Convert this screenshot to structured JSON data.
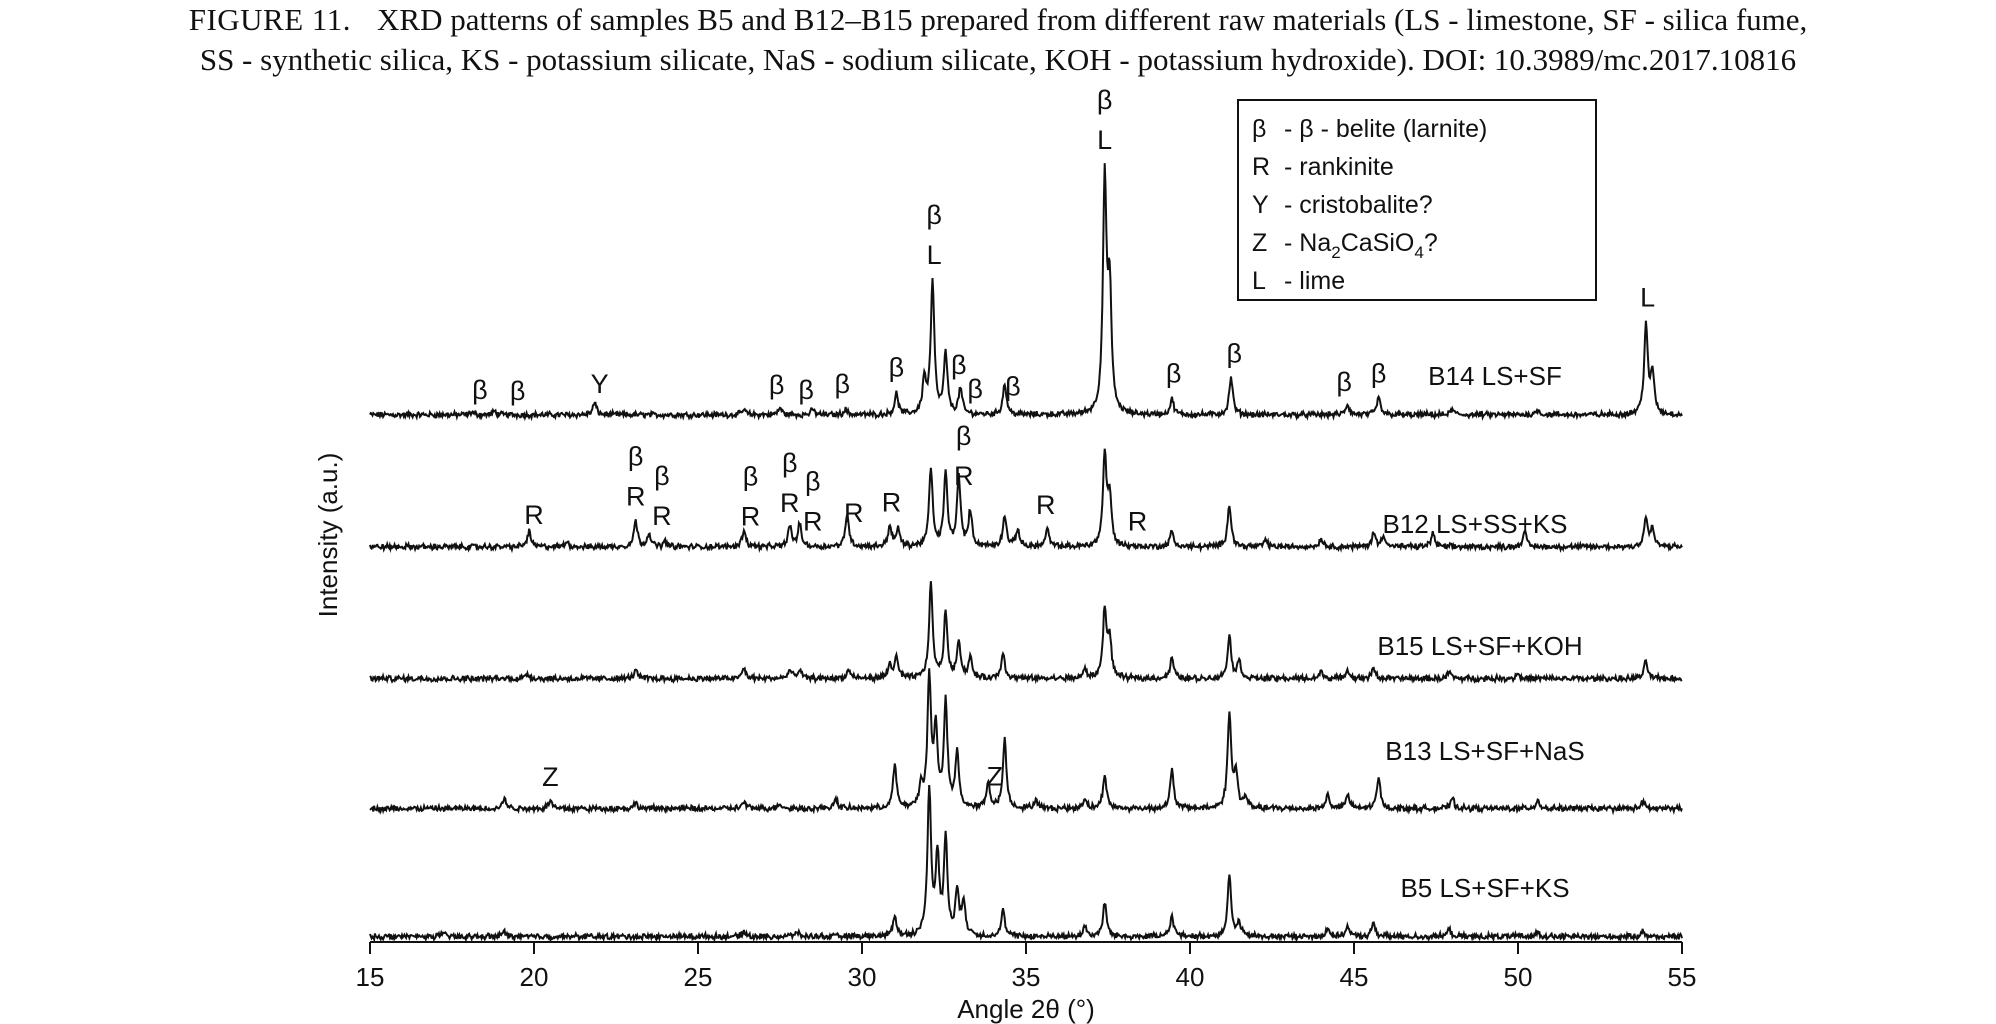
{
  "caption": {
    "figure_label": "FIGURE 11.",
    "line1": "XRD patterns of samples B5 and B12–B15 prepared from different raw materials (LS - limestone, SF - silica fume,",
    "line2": "SS - synthetic silica, KS - potassium silicate, NaS - sodium silicate, KOH - potassium hydroxide). DOI: 10.3989/mc.2017.10816"
  },
  "legend": {
    "entries": [
      {
        "symbol": "β",
        "text": "- β - belite (larnite)"
      },
      {
        "symbol": "R",
        "text": "- rankinite"
      },
      {
        "symbol": "Y",
        "text": "- cristobalite?"
      },
      {
        "symbol": "Z",
        "text": "- Na",
        "sub1": "2",
        "text2": "CaSiO",
        "sub2": "4",
        "text3": "?"
      },
      {
        "symbol": "L",
        "text": "- lime"
      }
    ]
  },
  "chart_data": {
    "type": "line",
    "xlabel": "Angle 2θ (°)",
    "ylabel": "Intensity (a.u.)",
    "xlim": [
      15,
      55
    ],
    "x_ticks": [
      15,
      20,
      25,
      30,
      35,
      40,
      45,
      50,
      55
    ],
    "y_ticks": "none",
    "grid": false,
    "noise": 0.013,
    "series": [
      {
        "name": "B14 LS+SF",
        "offset": 4,
        "baseline": 0.03,
        "peaks": [
          [
            18.1,
            0.015
          ],
          [
            18.8,
            0.02
          ],
          [
            21.85,
            0.07
          ],
          [
            26.4,
            0.03
          ],
          [
            27.5,
            0.04
          ],
          [
            28.5,
            0.03
          ],
          [
            29.5,
            0.03
          ],
          [
            31.05,
            0.12
          ],
          [
            31.9,
            0.2
          ],
          [
            32.15,
            0.77
          ],
          [
            32.55,
            0.35
          ],
          [
            33.0,
            0.15
          ],
          [
            34.35,
            0.18
          ],
          [
            37.4,
            1.35
          ],
          [
            37.55,
            0.7
          ],
          [
            39.45,
            0.09
          ],
          [
            41.25,
            0.22
          ],
          [
            44.8,
            0.06
          ],
          [
            45.75,
            0.1
          ],
          [
            48.0,
            0.03
          ],
          [
            50.6,
            0.03
          ],
          [
            53.9,
            0.52
          ],
          [
            54.1,
            0.24
          ]
        ]
      },
      {
        "name": "B12 LS+SS+KS",
        "offset": 3,
        "baseline": 0.03,
        "peaks": [
          [
            19.85,
            0.09
          ],
          [
            21.0,
            0.03
          ],
          [
            23.1,
            0.15
          ],
          [
            23.5,
            0.08
          ],
          [
            24.0,
            0.03
          ],
          [
            26.4,
            0.1
          ],
          [
            27.8,
            0.12
          ],
          [
            28.1,
            0.13
          ],
          [
            29.55,
            0.19
          ],
          [
            30.85,
            0.12
          ],
          [
            31.1,
            0.1
          ],
          [
            32.1,
            0.45
          ],
          [
            32.55,
            0.42
          ],
          [
            32.95,
            0.4
          ],
          [
            33.3,
            0.2
          ],
          [
            34.35,
            0.18
          ],
          [
            34.75,
            0.1
          ],
          [
            35.65,
            0.1
          ],
          [
            37.4,
            0.53
          ],
          [
            37.55,
            0.28
          ],
          [
            39.45,
            0.09
          ],
          [
            41.2,
            0.25
          ],
          [
            42.3,
            0.04
          ],
          [
            44.0,
            0.05
          ],
          [
            45.6,
            0.08
          ],
          [
            45.9,
            0.07
          ],
          [
            47.4,
            0.08
          ],
          [
            50.2,
            0.09
          ],
          [
            53.9,
            0.17
          ],
          [
            54.1,
            0.1
          ]
        ]
      },
      {
        "name": "B15 LS+SF+KOH",
        "offset": 2,
        "baseline": 0.02,
        "peaks": [
          [
            19.8,
            0.03
          ],
          [
            23.1,
            0.05
          ],
          [
            26.4,
            0.06
          ],
          [
            27.8,
            0.05
          ],
          [
            28.1,
            0.05
          ],
          [
            29.6,
            0.05
          ],
          [
            30.85,
            0.08
          ],
          [
            31.05,
            0.12
          ],
          [
            32.1,
            0.55
          ],
          [
            32.55,
            0.38
          ],
          [
            32.95,
            0.22
          ],
          [
            33.3,
            0.12
          ],
          [
            34.3,
            0.15
          ],
          [
            36.8,
            0.05
          ],
          [
            37.4,
            0.4
          ],
          [
            37.55,
            0.22
          ],
          [
            39.45,
            0.12
          ],
          [
            41.2,
            0.25
          ],
          [
            41.5,
            0.1
          ],
          [
            44.0,
            0.04
          ],
          [
            44.8,
            0.05
          ],
          [
            45.6,
            0.06
          ],
          [
            47.9,
            0.04
          ],
          [
            50.0,
            0.03
          ],
          [
            53.9,
            0.1
          ]
        ]
      },
      {
        "name": "B13 LS+SF+NaS",
        "offset": 1,
        "baseline": 0.02,
        "peaks": [
          [
            19.1,
            0.06
          ],
          [
            20.5,
            0.05
          ],
          [
            23.1,
            0.03
          ],
          [
            26.4,
            0.04
          ],
          [
            27.5,
            0.03
          ],
          [
            29.2,
            0.06
          ],
          [
            31.0,
            0.25
          ],
          [
            31.8,
            0.12
          ],
          [
            32.05,
            0.75
          ],
          [
            32.25,
            0.45
          ],
          [
            32.55,
            0.6
          ],
          [
            32.9,
            0.32
          ],
          [
            33.85,
            0.15
          ],
          [
            34.35,
            0.4
          ],
          [
            35.3,
            0.05
          ],
          [
            36.8,
            0.06
          ],
          [
            37.4,
            0.2
          ],
          [
            39.45,
            0.22
          ],
          [
            41.2,
            0.55
          ],
          [
            41.4,
            0.2
          ],
          [
            41.7,
            0.06
          ],
          [
            44.2,
            0.08
          ],
          [
            44.8,
            0.08
          ],
          [
            45.75,
            0.18
          ],
          [
            48.0,
            0.06
          ],
          [
            50.6,
            0.05
          ],
          [
            53.8,
            0.04
          ]
        ]
      },
      {
        "name": "B5 LS+SF+KS",
        "offset": 0,
        "baseline": 0.02,
        "peaks": [
          [
            17.2,
            0.02
          ],
          [
            19.1,
            0.03
          ],
          [
            26.4,
            0.03
          ],
          [
            28.0,
            0.03
          ],
          [
            31.0,
            0.12
          ],
          [
            32.05,
            0.85
          ],
          [
            32.3,
            0.45
          ],
          [
            32.55,
            0.55
          ],
          [
            32.9,
            0.25
          ],
          [
            33.1,
            0.2
          ],
          [
            34.3,
            0.15
          ],
          [
            36.8,
            0.06
          ],
          [
            37.4,
            0.2
          ],
          [
            39.45,
            0.12
          ],
          [
            41.2,
            0.35
          ],
          [
            41.5,
            0.08
          ],
          [
            44.2,
            0.05
          ],
          [
            44.8,
            0.06
          ],
          [
            45.6,
            0.08
          ],
          [
            47.9,
            0.04
          ],
          [
            50.6,
            0.03
          ],
          [
            53.8,
            0.03
          ]
        ]
      }
    ],
    "annotations": [
      {
        "series": "B14 LS+SF",
        "x": 18.35,
        "lines": [
          "β"
        ]
      },
      {
        "series": "B14 LS+SF",
        "x": 19.5,
        "lines": [
          "β"
        ]
      },
      {
        "series": "B14 LS+SF",
        "x": 22.0,
        "lines": [
          "Y"
        ]
      },
      {
        "series": "B14 LS+SF",
        "x": 27.4,
        "lines": [
          "β"
        ]
      },
      {
        "series": "B14 LS+SF",
        "x": 28.3,
        "lines": [
          "β"
        ]
      },
      {
        "series": "B14 LS+SF",
        "x": 29.4,
        "lines": [
          "β"
        ]
      },
      {
        "series": "B14 LS+SF",
        "x": 31.05,
        "lines": [
          "β"
        ]
      },
      {
        "series": "B14 LS+SF",
        "x": 32.2,
        "lines": [
          "β",
          "L"
        ]
      },
      {
        "series": "B14 LS+SF",
        "x": 32.95,
        "lines": [
          "β"
        ]
      },
      {
        "series": "B14 LS+SF",
        "x": 33.45,
        "lines": [
          "β"
        ]
      },
      {
        "series": "B14 LS+SF",
        "x": 34.6,
        "lines": [
          "β"
        ]
      },
      {
        "series": "B14 LS+SF",
        "x": 37.4,
        "lines": [
          "β",
          "L"
        ]
      },
      {
        "series": "B14 LS+SF",
        "x": 39.5,
        "lines": [
          "β"
        ]
      },
      {
        "series": "B14 LS+SF",
        "x": 41.35,
        "lines": [
          "β"
        ]
      },
      {
        "series": "B14 LS+SF",
        "x": 44.7,
        "lines": [
          "β"
        ]
      },
      {
        "series": "B14 LS+SF",
        "x": 45.75,
        "lines": [
          "β"
        ]
      },
      {
        "series": "B14 LS+SF",
        "x": 53.95,
        "lines": [
          "L"
        ]
      },
      {
        "series": "B12 LS+SS+KS",
        "x": 20.0,
        "lines": [
          "R"
        ]
      },
      {
        "series": "B12 LS+SS+KS",
        "x": 23.1,
        "lines": [
          "β",
          "R"
        ]
      },
      {
        "series": "B12 LS+SS+KS",
        "x": 23.9,
        "lines": [
          "β",
          "R"
        ]
      },
      {
        "series": "B12 LS+SS+KS",
        "x": 26.6,
        "lines": [
          "β",
          "R"
        ]
      },
      {
        "series": "B12 LS+SS+KS",
        "x": 27.8,
        "lines": [
          "β",
          "R"
        ]
      },
      {
        "series": "B12 LS+SS+KS",
        "x": 28.5,
        "lines": [
          "β",
          "R"
        ]
      },
      {
        "series": "B12 LS+SS+KS",
        "x": 29.75,
        "lines": [
          "R"
        ]
      },
      {
        "series": "B12 LS+SS+KS",
        "x": 30.9,
        "lines": [
          "R"
        ]
      },
      {
        "series": "B12 LS+SS+KS",
        "x": 33.1,
        "lines": [
          "β",
          "R"
        ]
      },
      {
        "series": "B12 LS+SS+KS",
        "x": 35.6,
        "lines": [
          "R"
        ]
      },
      {
        "series": "B12 LS+SS+KS",
        "x": 38.4,
        "lines": [
          "R"
        ]
      },
      {
        "series": "B13 LS+SF+NaS",
        "x": 20.5,
        "lines": [
          "Z"
        ]
      },
      {
        "series": "B13 LS+SF+NaS",
        "x": 34.05,
        "lines": [
          "Z"
        ]
      }
    ]
  }
}
